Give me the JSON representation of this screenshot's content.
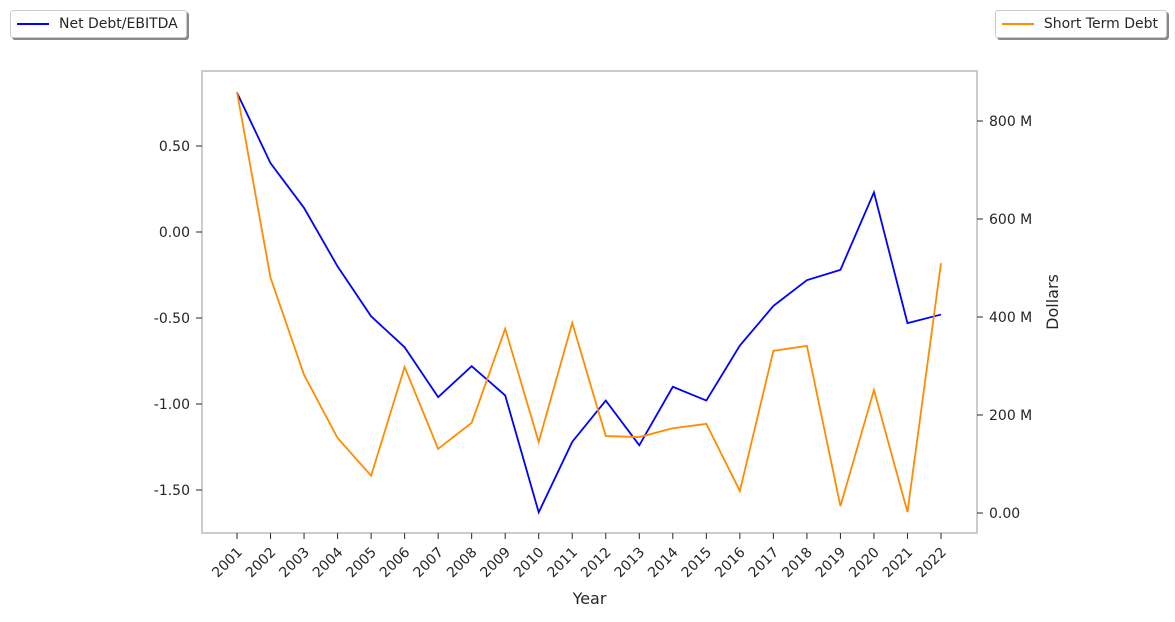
{
  "chart_data": {
    "type": "line",
    "xlabel": "Year",
    "ylabel_left": "",
    "ylabel_right": "Dollars",
    "categories": [
      "2001",
      "2002",
      "2003",
      "2004",
      "2005",
      "2006",
      "2007",
      "2008",
      "2009",
      "2010",
      "2011",
      "2012",
      "2013",
      "2014",
      "2015",
      "2016",
      "2017",
      "2018",
      "2019",
      "2020",
      "2021",
      "2022"
    ],
    "left_ticks": [
      0.5,
      0.0,
      -0.5,
      -1.0,
      -1.5
    ],
    "left_tick_labels": [
      "0.50",
      "0.00",
      "-0.50",
      "-1.00",
      "-1.50"
    ],
    "left_ylim": [
      -1.75,
      0.93
    ],
    "right_ticks": [
      0,
      200,
      400,
      600,
      800
    ],
    "right_tick_labels": [
      "0.00",
      "200 M",
      "400 M",
      "600 M",
      "800 M"
    ],
    "right_ylim": [
      -40,
      900
    ],
    "series": [
      {
        "name": "Net Debt/EBITDA",
        "axis": "left",
        "color": "#0000ff",
        "values": [
          0.81,
          0.4,
          0.14,
          -0.2,
          -0.49,
          -0.67,
          -0.96,
          -0.78,
          -0.95,
          -1.63,
          -1.22,
          -0.98,
          -1.24,
          -0.9,
          -0.98,
          -0.66,
          -0.43,
          -0.28,
          -0.22,
          0.23,
          -0.53,
          -0.48
        ]
      },
      {
        "name": "Short Term Debt",
        "axis": "right",
        "unit": "M",
        "color": "#ff8c00",
        "values": [
          859,
          480,
          282,
          153,
          76,
          298,
          131,
          184,
          376,
          145,
          388,
          157,
          155,
          173,
          182,
          45,
          331,
          341,
          14,
          251,
          2,
          510
        ]
      }
    ],
    "grid": false,
    "legend": [
      "top-left",
      "top-right"
    ]
  }
}
